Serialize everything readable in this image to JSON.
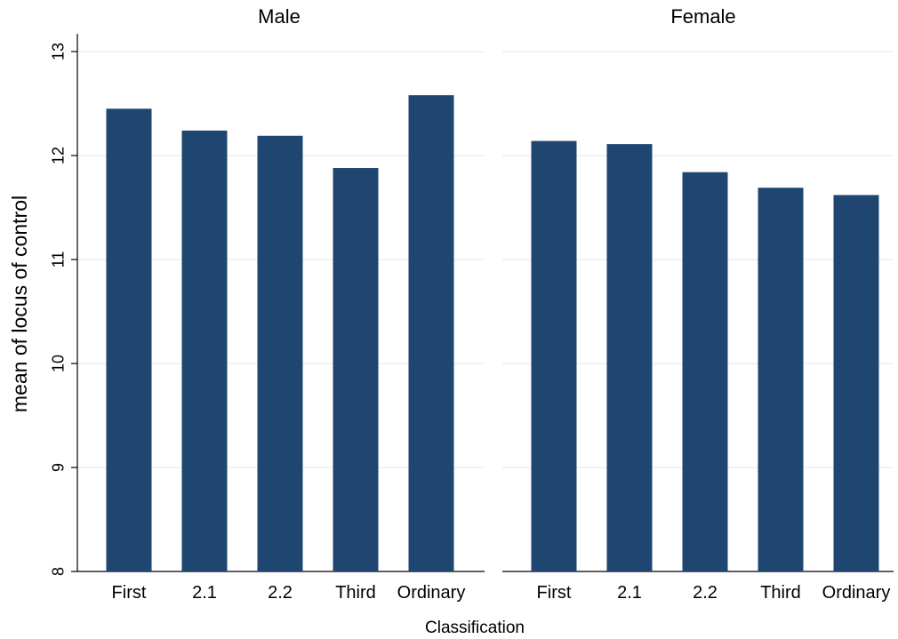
{
  "chart_data": {
    "type": "bar",
    "ylabel": "mean of locus of control",
    "xlabel": "Classification",
    "ylim": [
      8,
      13
    ],
    "yticks": [
      8,
      9,
      10,
      11,
      12,
      13
    ],
    "grid": true,
    "bar_color": "#1e4670",
    "grid_color": "#ebebeb",
    "panels": [
      {
        "title": "Male",
        "categories": [
          "First",
          "2.1",
          "2.2",
          "Third",
          "Ordinary"
        ],
        "values": [
          12.45,
          12.24,
          12.19,
          11.88,
          12.58
        ]
      },
      {
        "title": "Female",
        "categories": [
          "First",
          "2.1",
          "2.2",
          "Third",
          "Ordinary"
        ],
        "values": [
          12.14,
          12.11,
          11.84,
          11.69,
          11.62
        ]
      }
    ]
  }
}
